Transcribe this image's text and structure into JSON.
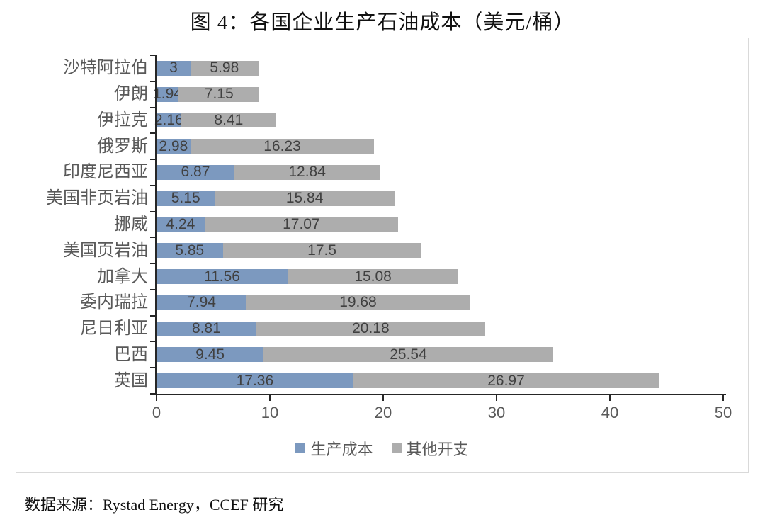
{
  "title": "图 4：各国企业生产石油成本（美元/桶）",
  "footer": {
    "source": "数据来源：Rystad Energy，CCEF 研究"
  },
  "legend": {
    "items": [
      {
        "label": "生产成本",
        "color": "#7C99BF"
      },
      {
        "label": "其他开支",
        "color": "#ADADAD"
      }
    ]
  },
  "colors": {
    "production_cost": "#7C99BF",
    "other_expense": "#ADADAD",
    "axis_line": "#262626",
    "chart_border": "#D9D9D9",
    "value_label": "#404040",
    "tick_label": "#595959"
  },
  "chart_data": {
    "type": "bar",
    "orientation": "horizontal",
    "stacked": true,
    "title": "图 4：各国企业生产石油成本（美元/桶）",
    "categories": [
      "沙特阿拉伯",
      "伊朗",
      "伊拉克",
      "俄罗斯",
      "印度尼西亚",
      "美国非页岩油",
      "挪威",
      "美国页岩油",
      "加拿大",
      "委内瑞拉",
      "尼日利亚",
      "巴西",
      "英国"
    ],
    "series": [
      {
        "name": "生产成本",
        "color": "#7C99BF",
        "values": [
          3,
          1.94,
          2.16,
          2.98,
          6.87,
          5.15,
          4.24,
          5.85,
          11.56,
          7.94,
          8.81,
          9.45,
          17.36
        ]
      },
      {
        "name": "其他开支",
        "color": "#ADADAD",
        "values": [
          5.98,
          7.15,
          8.41,
          16.23,
          12.84,
          15.84,
          17.07,
          17.5,
          15.08,
          19.68,
          20.18,
          25.54,
          26.97
        ]
      }
    ],
    "x_ticks": [
      0,
      10,
      20,
      30,
      40,
      50
    ],
    "xlim": [
      0,
      50
    ],
    "xlabel": "",
    "ylabel": "",
    "grid": false,
    "legend_position": "bottom"
  }
}
